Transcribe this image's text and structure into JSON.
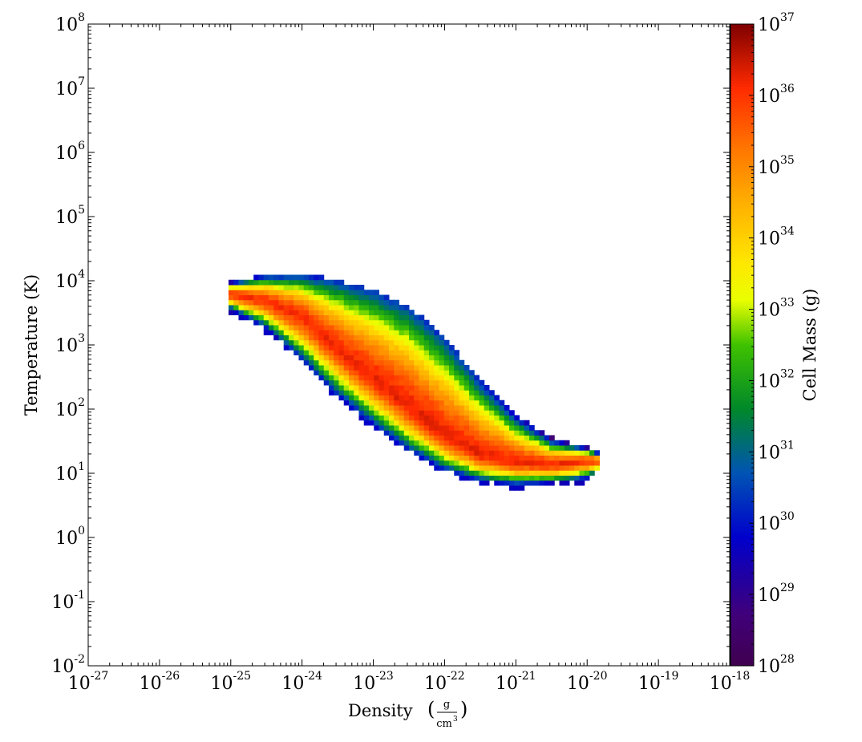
{
  "chart_data": {
    "type": "heatmap",
    "title": "",
    "xlabel": "Density",
    "xunit_num": "g",
    "xunit_den": "cm",
    "xunit_den_exp": "3",
    "ylabel": "Temperature  (K)",
    "colorbar_label": "Cell Mass  (g)",
    "x_scale": "log",
    "y_scale": "log",
    "color_scale": "log",
    "xlim": [
      1e-27,
      1e-18
    ],
    "ylim": [
      0.01,
      100000000.0
    ],
    "clim": [
      1e+28,
      1e+37
    ],
    "colormap": "spectral",
    "grid": false,
    "x_ticks": [
      {
        "value": 1e-27,
        "base": "10",
        "exp": "-27"
      },
      {
        "value": 1e-26,
        "base": "10",
        "exp": "-26"
      },
      {
        "value": 1e-25,
        "base": "10",
        "exp": "-25"
      },
      {
        "value": 1e-24,
        "base": "10",
        "exp": "-24"
      },
      {
        "value": 1e-23,
        "base": "10",
        "exp": "-23"
      },
      {
        "value": 1e-22,
        "base": "10",
        "exp": "-22"
      },
      {
        "value": 1e-21,
        "base": "10",
        "exp": "-21"
      },
      {
        "value": 1e-20,
        "base": "10",
        "exp": "-20"
      },
      {
        "value": 1e-19,
        "base": "10",
        "exp": "-19"
      },
      {
        "value": 1e-18,
        "base": "10",
        "exp": "-18"
      }
    ],
    "y_ticks": [
      {
        "value": 0.01,
        "base": "10",
        "exp": "-2"
      },
      {
        "value": 0.1,
        "base": "10",
        "exp": "-1"
      },
      {
        "value": 1,
        "base": "10",
        "exp": "0"
      },
      {
        "value": 10,
        "base": "10",
        "exp": "1"
      },
      {
        "value": 100,
        "base": "10",
        "exp": "2"
      },
      {
        "value": 1000,
        "base": "10",
        "exp": "3"
      },
      {
        "value": 10000,
        "base": "10",
        "exp": "4"
      },
      {
        "value": 100000,
        "base": "10",
        "exp": "5"
      },
      {
        "value": 1000000,
        "base": "10",
        "exp": "6"
      },
      {
        "value": 10000000,
        "base": "10",
        "exp": "7"
      },
      {
        "value": 100000000,
        "base": "10",
        "exp": "8"
      }
    ],
    "colorbar_ticks": [
      {
        "value": 1e+28,
        "base": "10",
        "exp": "28"
      },
      {
        "value": 1e+29,
        "base": "10",
        "exp": "29"
      },
      {
        "value": 1e+30,
        "base": "10",
        "exp": "30"
      },
      {
        "value": 1e+31,
        "base": "10",
        "exp": "31"
      },
      {
        "value": 1e+32,
        "base": "10",
        "exp": "32"
      },
      {
        "value": 1e+33,
        "base": "10",
        "exp": "33"
      },
      {
        "value": 1e+34,
        "base": "10",
        "exp": "34"
      },
      {
        "value": 1e+35,
        "base": "10",
        "exp": "35"
      },
      {
        "value": 1e+36,
        "base": "10",
        "exp": "36"
      },
      {
        "value": 1e+37,
        "base": "10",
        "exp": "37"
      }
    ],
    "colormap_stops": [
      {
        "t": 0.0,
        "color": "#3f004f"
      },
      {
        "t": 0.08,
        "color": "#40007a"
      },
      {
        "t": 0.2,
        "color": "#0000cc"
      },
      {
        "t": 0.3,
        "color": "#0054b4"
      },
      {
        "t": 0.4,
        "color": "#00882a"
      },
      {
        "t": 0.5,
        "color": "#3fc200"
      },
      {
        "t": 0.57,
        "color": "#eaff00"
      },
      {
        "t": 0.63,
        "color": "#ffe600"
      },
      {
        "t": 0.72,
        "color": "#ffb000"
      },
      {
        "t": 0.8,
        "color": "#ff7a00"
      },
      {
        "t": 0.9,
        "color": "#ff2a00"
      },
      {
        "t": 1.0,
        "color": "#7f0000"
      }
    ],
    "distribution": {
      "description_units": "log10 density [g/cm^3], log10 temperature [K], log10 cell mass [g]",
      "ridge": [
        {
          "logx": -25.0,
          "logy_low": 3.55,
          "logy_high": 3.95,
          "logy_peak": 3.8
        },
        {
          "logx": -24.5,
          "logy_low": 3.25,
          "logy_high": 4.05,
          "logy_peak": 3.7
        },
        {
          "logx": -24.0,
          "logy_low": 2.75,
          "logy_high": 4.05,
          "logy_peak": 3.45
        },
        {
          "logx": -23.5,
          "logy_low": 2.2,
          "logy_high": 3.95,
          "logy_peak": 2.95
        },
        {
          "logx": -23.0,
          "logy_low": 1.75,
          "logy_high": 3.8,
          "logy_peak": 2.5
        },
        {
          "logx": -22.5,
          "logy_low": 1.35,
          "logy_high": 3.55,
          "logy_peak": 2.05
        },
        {
          "logx": -22.0,
          "logy_low": 1.05,
          "logy_high": 3.05,
          "logy_peak": 1.6
        },
        {
          "logx": -21.5,
          "logy_low": 0.88,
          "logy_high": 2.4,
          "logy_peak": 1.3
        },
        {
          "logx": -21.0,
          "logy_low": 0.82,
          "logy_high": 1.85,
          "logy_peak": 1.18
        },
        {
          "logx": -20.5,
          "logy_low": 0.85,
          "logy_high": 1.5,
          "logy_peak": 1.15
        },
        {
          "logx": -20.0,
          "logy_low": 0.92,
          "logy_high": 1.38,
          "logy_peak": 1.2
        },
        {
          "logx": -19.8,
          "logy_low": 1.05,
          "logy_high": 1.3,
          "logy_peak": 1.2
        }
      ],
      "peak_log_mass": 36.3,
      "edge_log_mass": 29.8
    }
  }
}
